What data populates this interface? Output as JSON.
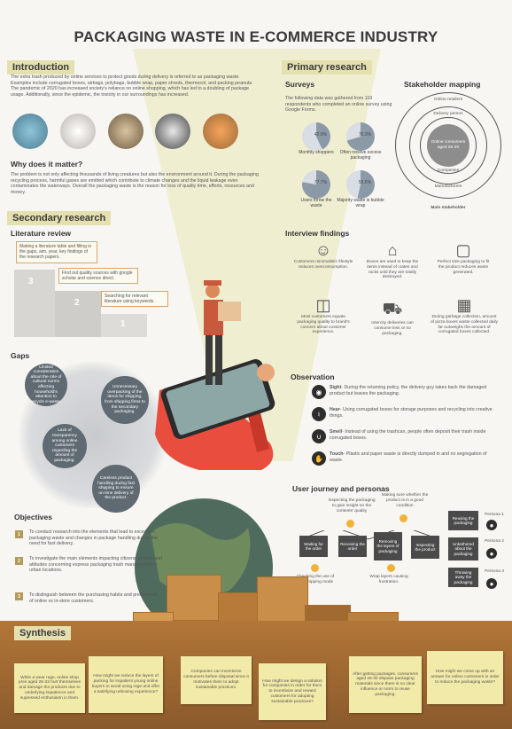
{
  "title": "PACKAGING WASTE IN E-COMMERCE INDUSTRY",
  "introduction": {
    "heading": "Introduction",
    "body": "The extra trash produced by online services to protect goods during delivery is referred to as packaging waste. Examples include corrugated boxes, airbags, polybags, bubble wrap, paper shreds, thermocol, and packing peanuts. The pandemic of 2020 has increased society's reliance on online shopping, which has led to a doubling of package usage. Additionally, since the epidemic, the toxicity in our surroundings has increased."
  },
  "why": {
    "heading": "Why does it matter?",
    "body": "The problem is not only affecting thousands of living creatures but also the environment around it. During the packaging recycling process, harmful gases are emitted which contribute to climate changes and the liquid leakage even contaminates the waterways. Overall the packaging waste is the reason for loss of quality time, efforts, resources and money."
  },
  "secondary": {
    "heading": "Secondary research",
    "lit_heading": "Literature review",
    "notes": [
      "Making a literature table and filling in the gaps, aim, year, key findings of the research papers.",
      "Find out quality sources with google scholar and science direct.",
      "Searching for relevant literature using keywords."
    ],
    "steps": [
      "3",
      "2",
      "1"
    ],
    "gaps_heading": "Gaps",
    "gaps": [
      "Limited consideration about the role of cultural norms affecting household's attention to recycle e-waste.",
      "Unnecessary overpacking of the items for shipping, from shipping firms to the secondary packaging.",
      "Lack of transparency among online customers regarding the amount of packaging.",
      "Careless product handling during fast shipping to ensure on-time delivery of the product."
    ],
    "obj_heading": "Objectives",
    "objectives": [
      {
        "num": "1",
        "text": "To conduct research into the elements that lead to excessive packaging waste and changes in package handling due to the need for fast delivery."
      },
      {
        "num": "2",
        "text": "To investigate the main elements impacting citizens' actions and attitudes concerning express packaging trash management in urban locations."
      },
      {
        "num": "3",
        "text": "To distinguish between the purchasing habits and preferences of online vs in-store customers."
      }
    ]
  },
  "primary": {
    "heading": "Primary research",
    "surveys_heading": "Surveys",
    "surveys_body": "The following data was gathered from 119 respondents who completed an online survey using Google Forms.",
    "pies": [
      {
        "label": "Monthly shoppers",
        "pct": "42.9%",
        "value": 42.9
      },
      {
        "label": "Often receive excess packaging",
        "pct": "70.3%",
        "value": 70.3
      },
      {
        "label": "Users throw the waste",
        "pct": "77.7%",
        "value": 77.7
      },
      {
        "label": "Majority waste is bubble wrap",
        "pct": "53.5%",
        "value": 53.5
      }
    ],
    "stake_heading": "Stakeholder mapping",
    "stake_rings": [
      "Online retailers",
      "Delivery person",
      "Companies",
      "Manufacturers"
    ],
    "stake_center": "Online consumers aged 25-30",
    "stake_caption": "Main stakeholder",
    "interview_heading": "Interview findings",
    "interviews": [
      {
        "icon": "user-icon",
        "text": "Customers minimalistic lifestyle reduces overconsumption."
      },
      {
        "icon": "house-icon",
        "text": "Boxes are used to keep the items instead of crates and racks until they are totally destroyed."
      },
      {
        "icon": "box-icon",
        "text": "Perfect size packaging to fit the product reduces waste generated."
      },
      {
        "icon": "open-box-icon",
        "text": "Most customers equate packaging quality to brand's concern about customer experience."
      },
      {
        "icon": "truck-icon",
        "text": "Intercity deliveries can consume less or no packaging."
      },
      {
        "icon": "bin-icon",
        "text": "During garbage collection, amount of pizza boxes waste collected daily far outweighs the amount of corrugated boxes collected."
      }
    ],
    "obs_heading": "Observation",
    "observations": [
      {
        "sense": "Sight",
        "text": "- During the returning policy, the delivery guy takes back the damaged product but leaves the packaging."
      },
      {
        "sense": "Hear",
        "text": "- Using corrugated boxes for storage purposes and recycling into creative things."
      },
      {
        "sense": "Smell",
        "text": "- Instead of using the trashcan, people often deposit their trash inside corrugated boxes."
      },
      {
        "sense": "Touch",
        "text": "- Plastic and paper waste is directly dumped in and no segregation of waste."
      }
    ],
    "journey_heading": "User journey and personas",
    "journey_steps": [
      "Waiting for the order",
      "Receiving the order",
      "Removing the layers of packaging",
      "Inspecting the product"
    ],
    "journey_thoughts_top": [
      "Inspecting the packaging to gain insight on the contents' quality",
      "Making sure whether the product is in a good condition"
    ],
    "journey_thoughts_bottom": [
      "Checking the use of fast shipping mode",
      "Wrap layers causing frustration."
    ],
    "personas": [
      {
        "action": "Reusing the packaging",
        "name": "Persona 1"
      },
      {
        "action": "Unbothered about the packaging",
        "name": "Persona 2"
      },
      {
        "action": "Throwing away the packaging",
        "name": "Persona 3"
      }
    ]
  },
  "synthesis": {
    "heading": "Synthesis",
    "notes": [
      "While a wear rage, online shop pres aged 25-32 hurt themselves and damage the products due to underlying impatience and supressed enthusiasm in them.",
      "How might we reduce the layers of packing for impatient young online buyers to avoid using rage and offer a satisfying unboxing experience?",
      "Companies can incentivize consumers before disposal since it motivates them to adopt sustainable practices.",
      "How might we design a solution for companies in order for them to incentivize and reward customers for adopting sustainable practices?",
      "After getting packages, consumers aged 25-30 dispose packaging materials since there is no clear influence or norm to reuse packaging.",
      "How might we come up with an answer for online customers in order to reduce the packaging waste?"
    ]
  },
  "colors": {
    "accent": "#e4e0b0",
    "dark": "#3a3a3a",
    "box": "#c98f4a"
  }
}
